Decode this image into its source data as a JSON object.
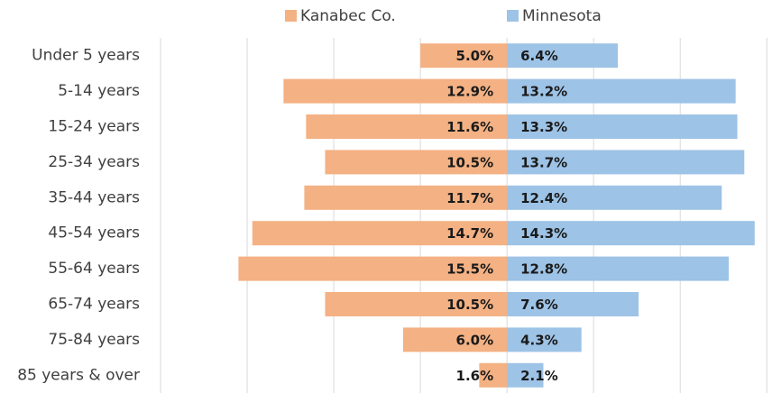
{
  "chart_data": {
    "type": "pyramid",
    "categories": [
      "Under 5 years",
      "5-14 years",
      "15-24 years",
      "25-34 years",
      "35-44 years",
      "45-54 years",
      "55-64 years",
      "65-74 years",
      "75-84 years",
      "85 years & over"
    ],
    "series": [
      {
        "name": "Kanabec Co.",
        "color": "#f4b183",
        "side": "left",
        "values": [
          5.0,
          12.9,
          11.6,
          10.5,
          11.7,
          14.7,
          15.5,
          10.5,
          6.0,
          1.6
        ],
        "value_labels": [
          "5.0%",
          "12.9%",
          "11.6%",
          "10.5%",
          "11.7%",
          "14.7%",
          "15.5%",
          "10.5%",
          "6.0%",
          "1.6%"
        ]
      },
      {
        "name": "Minnesota",
        "color": "#9dc3e6",
        "side": "right",
        "values": [
          6.4,
          13.2,
          13.3,
          13.7,
          12.4,
          14.3,
          12.8,
          7.6,
          4.3,
          2.1
        ],
        "value_labels": [
          "6.4%",
          "13.2%",
          "13.3%",
          "13.7%",
          "12.4%",
          "14.3%",
          "12.8%",
          "7.6%",
          "4.3%",
          "2.1%"
        ]
      }
    ],
    "xlim": [
      -20,
      15.3
    ],
    "xticks": [
      -20,
      -15,
      -10,
      -5,
      0,
      5,
      10,
      15
    ],
    "grid": true,
    "legend": "top"
  }
}
